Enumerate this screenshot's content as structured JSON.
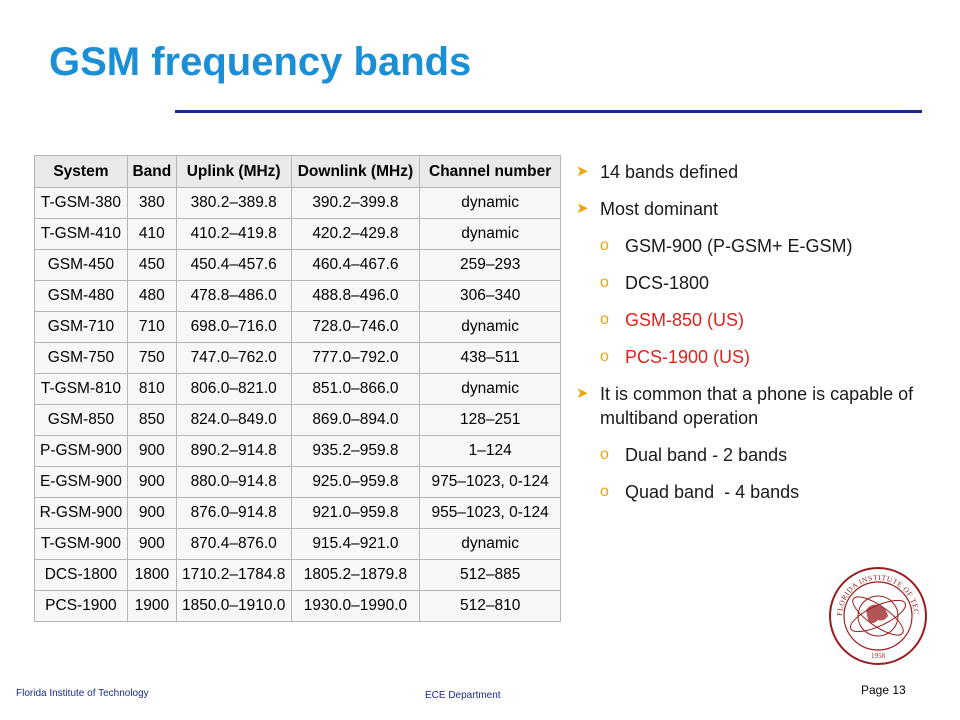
{
  "slide": {
    "title": "GSM frequency bands",
    "accent_color": "#1a8fd6",
    "rule_color": "#1b2a8a"
  },
  "table": {
    "headers": [
      "System",
      "Band",
      "Uplink (MHz)",
      "Downlink (MHz)",
      "Channel number"
    ],
    "rows": [
      [
        "T-GSM-380",
        "380",
        "380.2–389.8",
        "390.2–399.8",
        "dynamic"
      ],
      [
        "T-GSM-410",
        "410",
        "410.2–419.8",
        "420.2–429.8",
        "dynamic"
      ],
      [
        "GSM-450",
        "450",
        "450.4–457.6",
        "460.4–467.6",
        "259–293"
      ],
      [
        "GSM-480",
        "480",
        "478.8–486.0",
        "488.8–496.0",
        "306–340"
      ],
      [
        "GSM-710",
        "710",
        "698.0–716.0",
        "728.0–746.0",
        "dynamic"
      ],
      [
        "GSM-750",
        "750",
        "747.0–762.0",
        "777.0–792.0",
        "438–511"
      ],
      [
        "T-GSM-810",
        "810",
        "806.0–821.0",
        "851.0–866.0",
        "dynamic"
      ],
      [
        "GSM-850",
        "850",
        "824.0–849.0",
        "869.0–894.0",
        "128–251"
      ],
      [
        "P-GSM-900",
        "900",
        "890.2–914.8",
        "935.2–959.8",
        "1–124"
      ],
      [
        "E-GSM-900",
        "900",
        "880.0–914.8",
        "925.0–959.8",
        "975–1023, 0-124"
      ],
      [
        "R-GSM-900",
        "900",
        "876.0–914.8",
        "921.0–959.8",
        "955–1023, 0-124"
      ],
      [
        "T-GSM-900",
        "900",
        "870.4–876.0",
        "915.4–921.0",
        "dynamic"
      ],
      [
        "DCS-1800",
        "1800",
        "1710.2–1784.8",
        "1805.2–1879.8",
        "512–885"
      ],
      [
        "PCS-1900",
        "1900",
        "1850.0–1910.0",
        "1930.0–1990.0",
        "512–810"
      ]
    ]
  },
  "bullets": {
    "b1": "14 bands defined",
    "b2": "Most dominant",
    "b2_sub": [
      "GSM-900 (P-GSM+ E-GSM)",
      "DCS-1800",
      "GSM-850 (US)",
      "PCS-1900 (US)"
    ],
    "b3": "It is common that a phone is capable of multiband operation",
    "b3_sub": [
      "Dual band - 2 bands",
      "Quad band  - 4 bands"
    ],
    "bullet_color": "#f0a30a",
    "highlight_color": "#e0221b"
  },
  "footer": {
    "left": "Florida Institute of Technology",
    "center": "ECE Department",
    "page": "Page 13"
  },
  "seal": {
    "text": "FLORIDA INSTITUTE OF TECHNOLOGY",
    "year": "1958",
    "color": "#9b1c1c"
  }
}
